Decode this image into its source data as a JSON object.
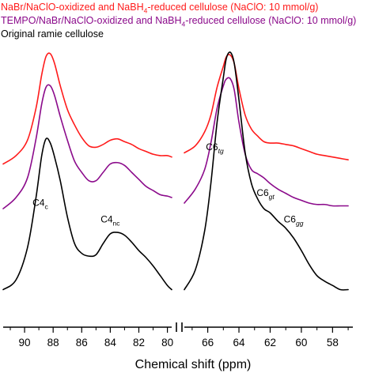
{
  "chart_data": {
    "type": "line",
    "xlabel": "Chemical shift (ppm)",
    "axis_break": true,
    "x_reversed": true,
    "panels": [
      {
        "xlim": [
          91.5,
          79.7
        ],
        "ticks": [
          90,
          88,
          86,
          84,
          82,
          80
        ]
      },
      {
        "xlim": [
          67.5,
          56.7
        ],
        "ticks": [
          66,
          64,
          62,
          60,
          58
        ]
      }
    ],
    "series": [
      {
        "name": "NaBr/NaClO-oxidized and NaBH₄-reduced cellulose (NaClO: 10 mmol/g)",
        "color": "#ff1a1a",
        "segments": [
          {
            "x": [
              91.5,
              90.6,
              89.8,
              89.2,
              88.8,
              88.5,
              88.2,
              87.9,
              87.5,
              87.0,
              86.5,
              86.0,
              85.5,
              85.0,
              84.5,
              84.0,
              83.5,
              83.0,
              82.5,
              82.0,
              81.5,
              81.0,
              80.5,
              80.0,
              79.7
            ],
            "y": [
              0.9,
              0.96,
              1.07,
              1.3,
              1.54,
              1.67,
              1.69,
              1.62,
              1.46,
              1.29,
              1.18,
              1.09,
              1.03,
              1.02,
              1.04,
              1.07,
              1.08,
              1.06,
              1.04,
              1.01,
              0.99,
              0.97,
              0.96,
              0.96,
              0.95
            ]
          },
          {
            "x": [
              67.5,
              66.8,
              66.2,
              65.8,
              65.4,
              65.0,
              64.8,
              64.55,
              64.3,
              64.0,
              63.6,
              63.2,
              62.8,
              62.4,
              62.0,
              61.5,
              61.0,
              60.5,
              60.0,
              59.5,
              59.0,
              58.5,
              58.0,
              57.5,
              57.0
            ],
            "y": [
              0.98,
              1.03,
              1.13,
              1.25,
              1.45,
              1.6,
              1.67,
              1.68,
              1.62,
              1.44,
              1.25,
              1.15,
              1.1,
              1.06,
              1.05,
              1.05,
              1.04,
              1.03,
              1.01,
              0.99,
              0.97,
              0.96,
              0.95,
              0.94,
              0.93
            ]
          }
        ]
      },
      {
        "name": "TEMPO/NaBr/NaClO-oxidized and NaBH₄-reduced cellulose (NaClO: 10 mmol/g)",
        "color": "#8b0a8b",
        "segments": [
          {
            "x": [
              91.5,
              90.6,
              89.8,
              89.2,
              88.8,
              88.5,
              88.2,
              87.9,
              87.5,
              87.0,
              86.5,
              86.0,
              85.5,
              85.0,
              84.5,
              84.0,
              83.5,
              83.0,
              82.5,
              82.0,
              81.5,
              81.0,
              80.5,
              80.0,
              79.7
            ],
            "y": [
              0.58,
              0.66,
              0.8,
              1.08,
              1.33,
              1.45,
              1.46,
              1.39,
              1.24,
              1.07,
              0.92,
              0.84,
              0.78,
              0.78,
              0.84,
              0.9,
              0.91,
              0.89,
              0.84,
              0.79,
              0.74,
              0.71,
              0.68,
              0.67,
              0.66
            ]
          },
          {
            "x": [
              67.5,
              66.8,
              66.2,
              65.8,
              65.4,
              65.0,
              64.8,
              64.55,
              64.3,
              64.0,
              63.6,
              63.2,
              62.8,
              62.4,
              62.0,
              61.5,
              61.0,
              60.5,
              60.0,
              59.5,
              59.0,
              58.5,
              58.0,
              57.5,
              57.0
            ],
            "y": [
              0.62,
              0.72,
              0.86,
              1.05,
              1.3,
              1.46,
              1.51,
              1.51,
              1.43,
              1.2,
              0.97,
              0.86,
              0.83,
              0.8,
              0.76,
              0.72,
              0.69,
              0.66,
              0.64,
              0.62,
              0.61,
              0.61,
              0.6,
              0.6,
              0.6
            ]
          }
        ]
      },
      {
        "name": "Original ramie cellulose",
        "color": "#000000",
        "segments": [
          {
            "x": [
              91.5,
              90.6,
              89.8,
              89.2,
              88.8,
              88.5,
              88.2,
              87.9,
              87.5,
              87.0,
              86.5,
              86.0,
              85.5,
              85.0,
              84.5,
              84.0,
              83.5,
              83.0,
              82.5,
              82.0,
              81.5,
              81.0,
              80.5,
              80.0,
              79.7
            ],
            "y": [
              0.0,
              0.07,
              0.3,
              0.66,
              0.96,
              1.08,
              1.05,
              0.95,
              0.78,
              0.52,
              0.33,
              0.26,
              0.24,
              0.25,
              0.33,
              0.4,
              0.41,
              0.39,
              0.34,
              0.28,
              0.23,
              0.17,
              0.1,
              0.03,
              0.0
            ]
          },
          {
            "x": [
              67.5,
              66.8,
              66.2,
              65.8,
              65.4,
              65.0,
              64.8,
              64.55,
              64.3,
              64.0,
              63.6,
              63.2,
              62.8,
              62.4,
              62.0,
              61.5,
              61.0,
              60.5,
              60.0,
              59.5,
              59.0,
              58.5,
              58.0,
              57.5,
              57.0
            ],
            "y": [
              0.0,
              0.14,
              0.42,
              0.76,
              1.2,
              1.52,
              1.66,
              1.7,
              1.62,
              1.36,
              0.98,
              0.76,
              0.65,
              0.58,
              0.55,
              0.49,
              0.44,
              0.37,
              0.28,
              0.18,
              0.1,
              0.06,
              0.03,
              0.0,
              0.0
            ]
          }
        ]
      }
    ],
    "annotations": [
      {
        "base": "C4",
        "sub": "c",
        "x": 88.9,
        "y": 0.6
      },
      {
        "base": "C4",
        "sub": "nc",
        "x": 84.0,
        "y": 0.48
      },
      {
        "base": "C6",
        "sub": "tg",
        "x": 65.55,
        "y": 1.0
      },
      {
        "base": "C6",
        "sub": "gt",
        "x": 62.3,
        "y": 0.67
      },
      {
        "base": "C6",
        "sub": "gg",
        "x": 60.5,
        "y": 0.48
      }
    ],
    "ylim": [
      -0.15,
      1.82
    ]
  }
}
